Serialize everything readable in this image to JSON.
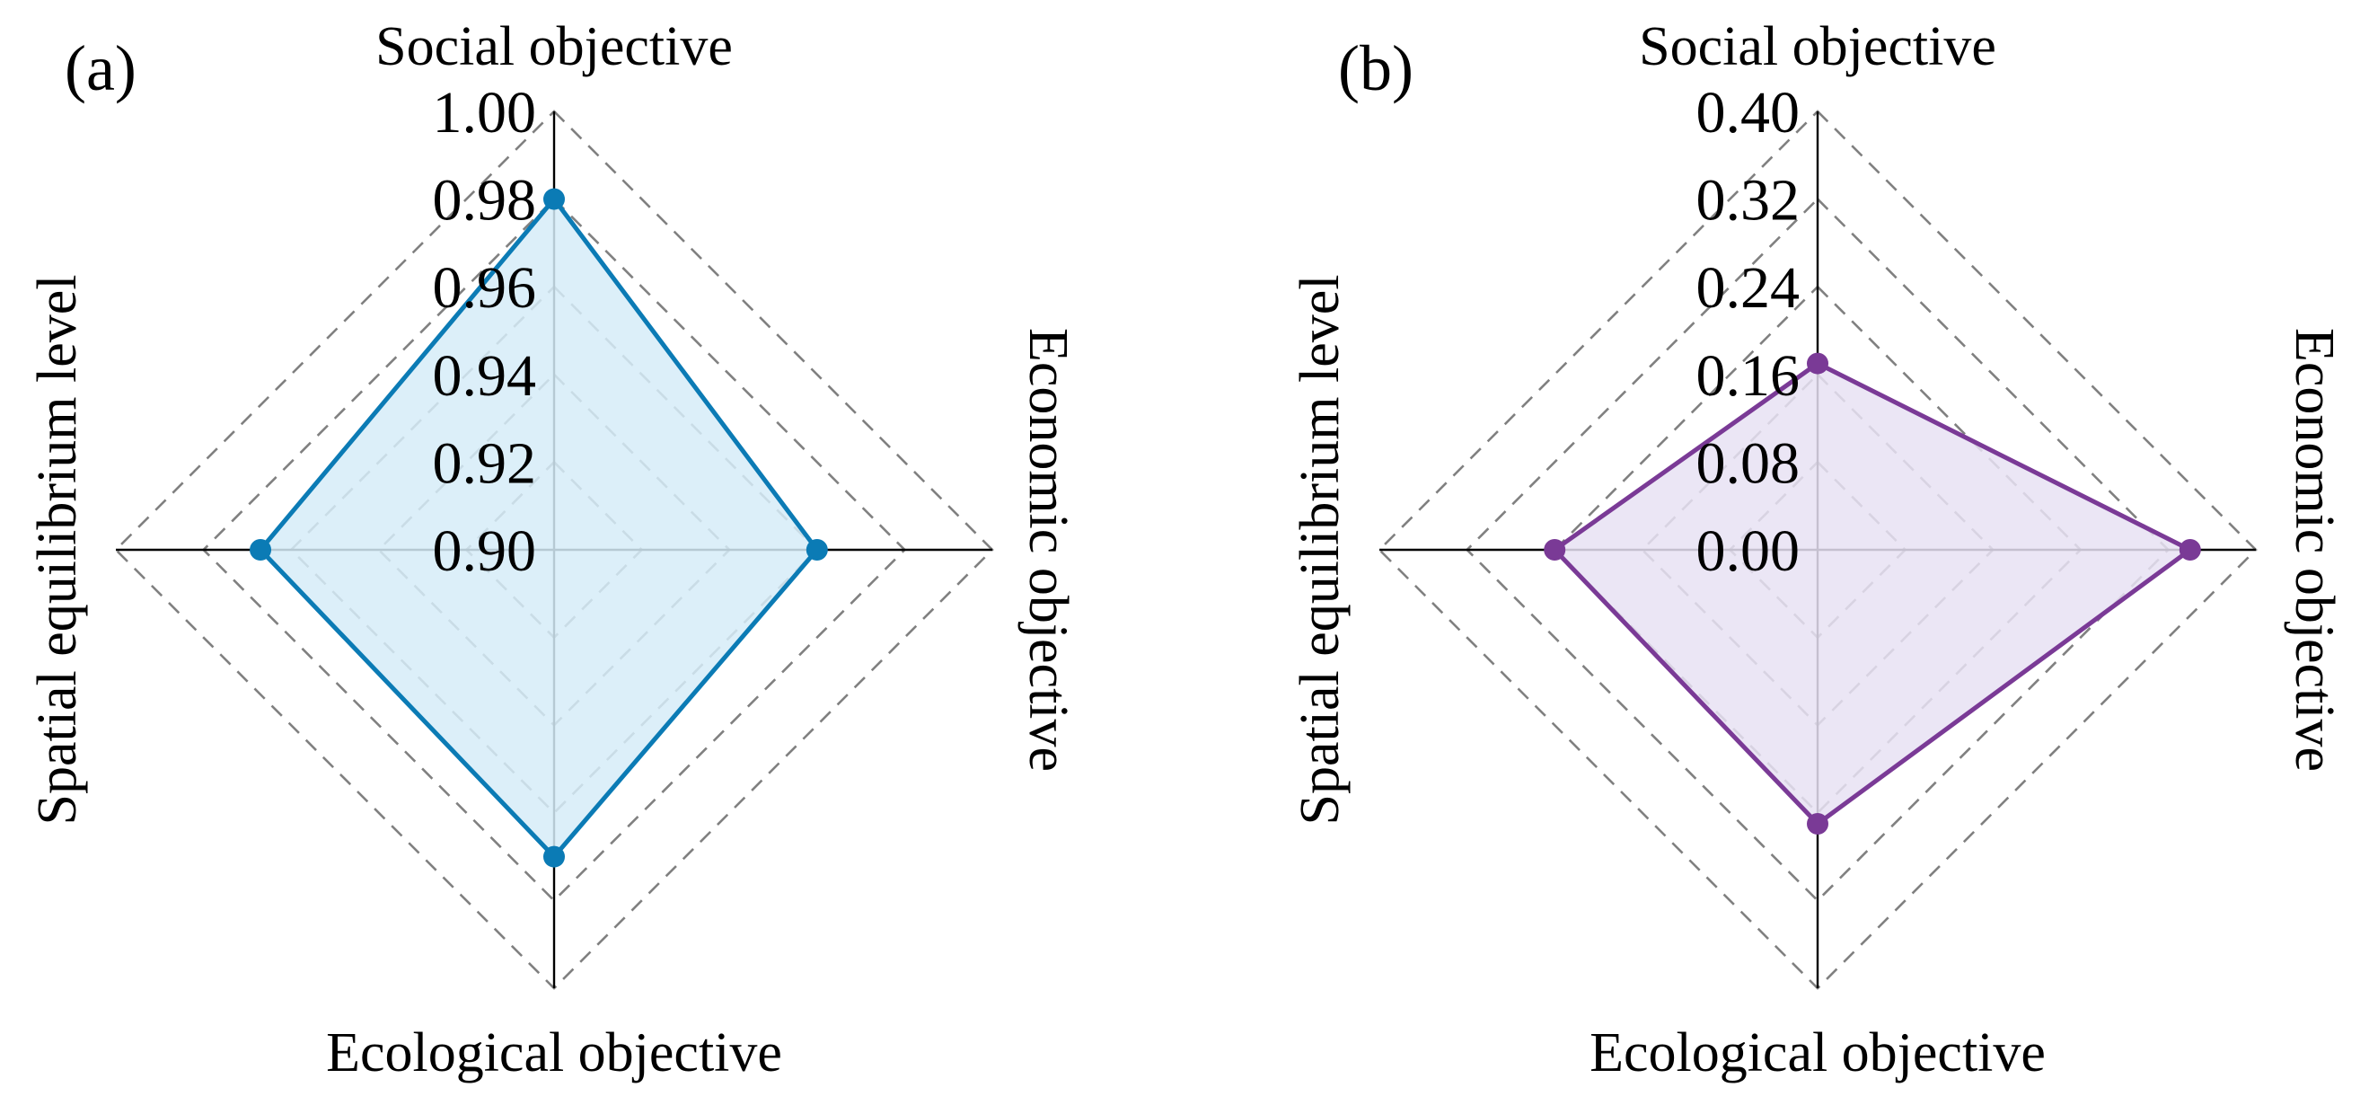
{
  "chart_data": [
    {
      "type": "radar",
      "panel_label": "(a)",
      "axes": [
        "Social objective",
        "Economic objective",
        "Ecological objective",
        "Spatial equilibrium level"
      ],
      "range": [
        0.9,
        1.0
      ],
      "ticks": [
        "0.90",
        "0.92",
        "0.94",
        "0.96",
        "0.98",
        "1.00"
      ],
      "grid": "dashed",
      "series": [
        {
          "values": [
            0.98,
            0.96,
            0.97,
            0.967
          ],
          "color": "#0b7bb5",
          "fill": "#d6ecf8"
        }
      ]
    },
    {
      "type": "radar",
      "panel_label": "(b)",
      "axes": [
        "Social objective",
        "Economic objective",
        "Ecological objective",
        "Spatial equilibrium level"
      ],
      "range": [
        0.0,
        0.4
      ],
      "ticks": [
        "0.00",
        "0.08",
        "0.16",
        "0.24",
        "0.32",
        "0.40"
      ],
      "grid": "dashed",
      "series": [
        {
          "values": [
            0.17,
            0.34,
            0.25,
            0.24
          ],
          "color": "#7a3a96",
          "fill": "#e7e2f3"
        }
      ]
    }
  ]
}
